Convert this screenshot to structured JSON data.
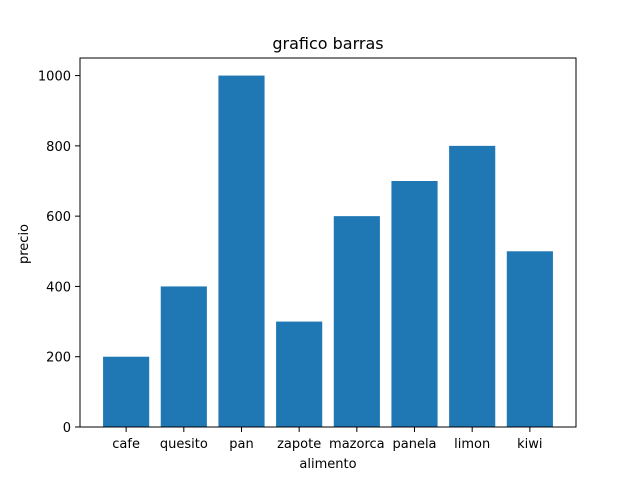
{
  "chart_data": {
    "type": "bar",
    "title": "grafico barras",
    "xlabel": "alimento",
    "ylabel": "precio",
    "categories": [
      "cafe",
      "quesito",
      "pan",
      "zapote",
      "mazorca",
      "panela",
      "limon",
      "kiwi"
    ],
    "values": [
      200,
      400,
      1000,
      300,
      600,
      700,
      800,
      500
    ],
    "yticks": [
      "0",
      "200",
      "400",
      "600",
      "800",
      "1000"
    ],
    "ylim": [
      0,
      1050
    ],
    "grid": false,
    "bar_color": "#1f77b4"
  }
}
